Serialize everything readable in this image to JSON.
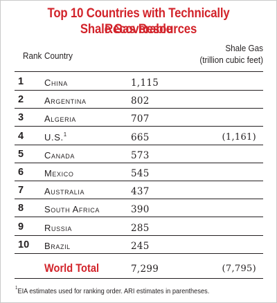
{
  "title": {
    "line1": "Top 10 Countries with Technically Recoverable",
    "line2": "Shale Gas Resources"
  },
  "header": {
    "rank": "Rank",
    "country": "Country",
    "shale_gas": "Shale Gas",
    "unit": "(trillion cubic feet)"
  },
  "rows": [
    {
      "rank": "1",
      "country": "China",
      "value": "1,115",
      "ari": ""
    },
    {
      "rank": "2",
      "country": "Argentina",
      "value": "802",
      "ari": ""
    },
    {
      "rank": "3",
      "country": "Algeria",
      "value": "707",
      "ari": ""
    },
    {
      "rank": "4",
      "country": "U.S.",
      "footnote": "1",
      "value": "665",
      "ari": "(1,161)"
    },
    {
      "rank": "5",
      "country": "Canada",
      "value": "573",
      "ari": ""
    },
    {
      "rank": "6",
      "country": "Mexico",
      "value": "545",
      "ari": ""
    },
    {
      "rank": "7",
      "country": "Australia",
      "value": "437",
      "ari": ""
    },
    {
      "rank": "8",
      "country": "South Africa",
      "value": "390",
      "ari": ""
    },
    {
      "rank": "9",
      "country": "Russia",
      "value": "285",
      "ari": ""
    },
    {
      "rank": "10",
      "country": "Brazil",
      "value": "245",
      "ari": ""
    }
  ],
  "total": {
    "label": "World Total",
    "value": "7,299",
    "ari": "(7,795)"
  },
  "footnote": {
    "marker": "1",
    "text": "EIA estimates used for ranking order. ARI estimates in parentheses."
  },
  "colors": {
    "accent": "#d2232a",
    "text": "#231f20"
  }
}
